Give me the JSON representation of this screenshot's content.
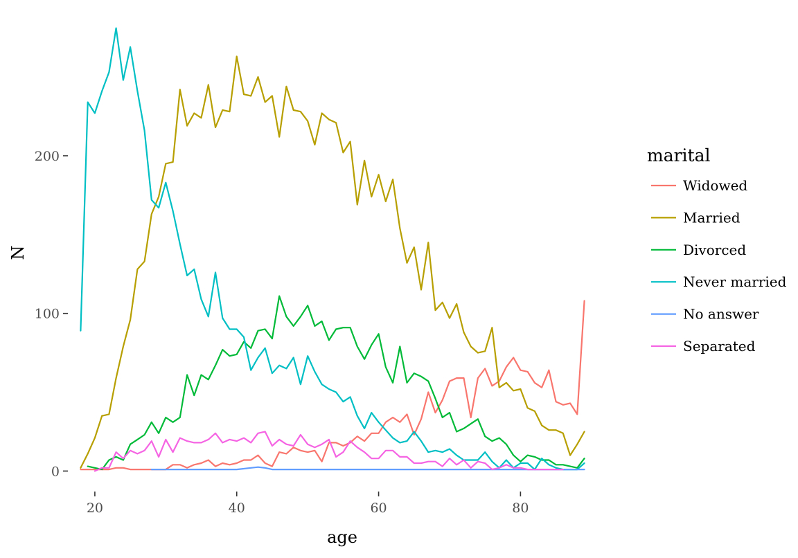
{
  "chart_data": {
    "type": "line",
    "title": "",
    "xlabel": "age",
    "ylabel": "N",
    "xlim": [
      16.2,
      90.8
    ],
    "ylim": [
      -13,
      283
    ],
    "xticks": [
      20,
      40,
      60,
      80
    ],
    "yticks": [
      0,
      100,
      200
    ],
    "grid": false,
    "legend": {
      "title": "marital",
      "position": "right"
    },
    "series": [
      {
        "name": "Widowed",
        "color": "#F8766D",
        "x": [
          18,
          19,
          20,
          21,
          22,
          23,
          24,
          25,
          26,
          27,
          28,
          29,
          30,
          31,
          32,
          33,
          34,
          35,
          36,
          37,
          38,
          39,
          40,
          41,
          42,
          43,
          44,
          45,
          46,
          47,
          48,
          49,
          50,
          51,
          52,
          53,
          54,
          55,
          56,
          57,
          58,
          59,
          60,
          61,
          62,
          63,
          64,
          65,
          66,
          67,
          68,
          69,
          70,
          71,
          72,
          73,
          74,
          75,
          76,
          77,
          78,
          79,
          80,
          81,
          82,
          83,
          84,
          85,
          86,
          87,
          88,
          89
        ],
        "values": [
          1,
          1,
          1,
          1,
          1,
          2,
          2,
          1,
          1,
          1,
          1,
          1,
          1,
          4,
          4,
          2,
          4,
          5,
          7,
          3,
          5,
          4,
          5,
          7,
          7,
          10,
          5,
          3,
          12,
          11,
          15,
          13,
          12,
          13,
          6,
          18,
          18,
          16,
          18,
          22,
          19,
          24,
          24,
          31,
          34,
          31,
          36,
          23,
          33,
          50,
          37,
          45,
          57,
          59,
          59,
          34,
          59,
          65,
          54,
          57,
          66,
          72,
          64,
          63,
          56,
          53,
          64,
          44,
          42,
          43,
          36,
          108
        ]
      },
      {
        "name": "Married",
        "color": "#B79F00",
        "x": [
          18,
          19,
          20,
          21,
          22,
          23,
          24,
          25,
          26,
          27,
          28,
          29,
          30,
          31,
          32,
          33,
          34,
          35,
          36,
          37,
          38,
          39,
          40,
          41,
          42,
          43,
          44,
          45,
          46,
          47,
          48,
          49,
          50,
          51,
          52,
          53,
          54,
          55,
          56,
          57,
          58,
          59,
          60,
          61,
          62,
          63,
          64,
          65,
          66,
          67,
          68,
          69,
          70,
          71,
          72,
          73,
          74,
          75,
          76,
          77,
          78,
          79,
          80,
          81,
          82,
          83,
          84,
          85,
          86,
          87,
          88,
          89
        ],
        "values": [
          2,
          11,
          21,
          35,
          36,
          59,
          79,
          96,
          128,
          133,
          163,
          174,
          195,
          196,
          242,
          219,
          227,
          224,
          245,
          218,
          229,
          228,
          263,
          239,
          238,
          250,
          234,
          238,
          212,
          244,
          229,
          228,
          222,
          207,
          227,
          223,
          221,
          202,
          209,
          169,
          197,
          174,
          188,
          171,
          185,
          154,
          132,
          142,
          115,
          145,
          102,
          107,
          97,
          106,
          88,
          79,
          75,
          76,
          91,
          53,
          56,
          51,
          52,
          40,
          38,
          29,
          26,
          26,
          24,
          10,
          17,
          25
        ]
      },
      {
        "name": "Divorced",
        "color": "#00BA38",
        "x": [
          19,
          20,
          21,
          22,
          23,
          24,
          25,
          26,
          27,
          28,
          29,
          30,
          31,
          32,
          33,
          34,
          35,
          36,
          37,
          38,
          39,
          40,
          41,
          42,
          43,
          44,
          45,
          46,
          47,
          48,
          49,
          50,
          51,
          52,
          53,
          54,
          55,
          56,
          57,
          58,
          59,
          60,
          61,
          62,
          63,
          64,
          65,
          66,
          67,
          68,
          69,
          70,
          71,
          72,
          73,
          74,
          75,
          76,
          77,
          78,
          79,
          80,
          81,
          82,
          83,
          84,
          85,
          86,
          87,
          88,
          89
        ],
        "values": [
          3,
          2,
          1,
          7,
          9,
          7,
          17,
          20,
          23,
          31,
          24,
          34,
          31,
          34,
          61,
          48,
          61,
          58,
          67,
          77,
          73,
          74,
          82,
          78,
          89,
          90,
          84,
          111,
          98,
          92,
          98,
          105,
          92,
          95,
          83,
          90,
          91,
          91,
          79,
          71,
          80,
          87,
          66,
          56,
          79,
          56,
          62,
          60,
          57,
          46,
          34,
          37,
          25,
          27,
          30,
          33,
          22,
          19,
          21,
          17,
          10,
          6,
          10,
          9,
          7,
          7,
          4,
          4,
          3,
          2,
          8
        ]
      },
      {
        "name": "Never married",
        "color": "#00BFC4",
        "x": [
          18,
          19,
          20,
          21,
          22,
          23,
          24,
          25,
          26,
          27,
          28,
          29,
          30,
          31,
          32,
          33,
          34,
          35,
          36,
          37,
          38,
          39,
          40,
          41,
          42,
          43,
          44,
          45,
          46,
          47,
          48,
          49,
          50,
          51,
          52,
          53,
          54,
          55,
          56,
          57,
          58,
          59,
          60,
          61,
          62,
          63,
          64,
          65,
          66,
          67,
          68,
          69,
          70,
          71,
          72,
          73,
          74,
          75,
          76,
          77,
          78,
          79,
          80,
          81,
          82,
          83,
          84,
          85,
          86,
          87,
          88,
          89
        ],
        "values": [
          89,
          234,
          227,
          241,
          253,
          281,
          248,
          269,
          241,
          216,
          172,
          167,
          183,
          165,
          144,
          124,
          128,
          109,
          98,
          126,
          97,
          90,
          90,
          85,
          64,
          72,
          78,
          62,
          67,
          65,
          72,
          55,
          73,
          63,
          55,
          52,
          50,
          44,
          47,
          35,
          27,
          37,
          31,
          26,
          21,
          18,
          19,
          25,
          19,
          12,
          13,
          12,
          14,
          10,
          7,
          7,
          7,
          12,
          6,
          2,
          7,
          2,
          5,
          5,
          1,
          8,
          4,
          2,
          1,
          1,
          1,
          5
        ]
      },
      {
        "name": "No answer",
        "color": "#619CFF",
        "x": [
          28,
          29,
          30,
          31,
          32,
          33,
          34,
          35,
          36,
          37,
          38,
          39,
          40,
          41,
          42,
          43,
          44,
          45,
          46,
          47,
          48,
          49,
          50,
          51,
          52,
          53,
          54,
          55,
          56,
          57,
          58,
          59,
          60,
          61,
          62,
          63,
          64,
          65,
          66,
          67,
          68,
          69,
          70,
          71,
          72,
          73,
          74,
          75,
          76,
          77,
          78,
          79,
          80,
          81,
          82,
          83,
          84,
          85,
          86,
          87,
          88,
          89
        ],
        "values": [
          1,
          1,
          1,
          1,
          1,
          1,
          1,
          1,
          1,
          1,
          1,
          1,
          1,
          1.5,
          2,
          2.5,
          2,
          1,
          1,
          1,
          1,
          1,
          1,
          1,
          1,
          1,
          1,
          1,
          1,
          1,
          1,
          1,
          1,
          1,
          1,
          1,
          1,
          1,
          1,
          1,
          1,
          1,
          1,
          1,
          1,
          1,
          1,
          1,
          1,
          1,
          1,
          1,
          1,
          1,
          1,
          1,
          1,
          1,
          1,
          1,
          1,
          1
        ]
      },
      {
        "name": "Separated",
        "color": "#F564E3",
        "x": [
          20,
          21,
          22,
          23,
          24,
          25,
          26,
          27,
          28,
          29,
          30,
          31,
          32,
          33,
          34,
          35,
          36,
          37,
          38,
          39,
          40,
          41,
          42,
          43,
          44,
          45,
          46,
          47,
          48,
          49,
          50,
          51,
          52,
          53,
          54,
          55,
          56,
          57,
          58,
          59,
          60,
          61,
          62,
          63,
          64,
          65,
          66,
          67,
          68,
          69,
          70,
          71,
          72,
          73,
          74,
          75,
          76,
          77,
          78,
          79,
          80,
          81,
          82,
          83,
          84,
          85,
          86
        ],
        "values": [
          0,
          2,
          2,
          12,
          8,
          13,
          11,
          13,
          19,
          9,
          20,
          12,
          21,
          19,
          18,
          18,
          20,
          24,
          18,
          20,
          19,
          21,
          18,
          24,
          25,
          16,
          20,
          17,
          16,
          23,
          17,
          15,
          17,
          20,
          9,
          12,
          19,
          15,
          12,
          8,
          8,
          13,
          13,
          9,
          9,
          5,
          5,
          6,
          6,
          3,
          8,
          4,
          7,
          2,
          6,
          5,
          1,
          2,
          4,
          2,
          2,
          1,
          1,
          1,
          1,
          1,
          1
        ]
      }
    ]
  }
}
